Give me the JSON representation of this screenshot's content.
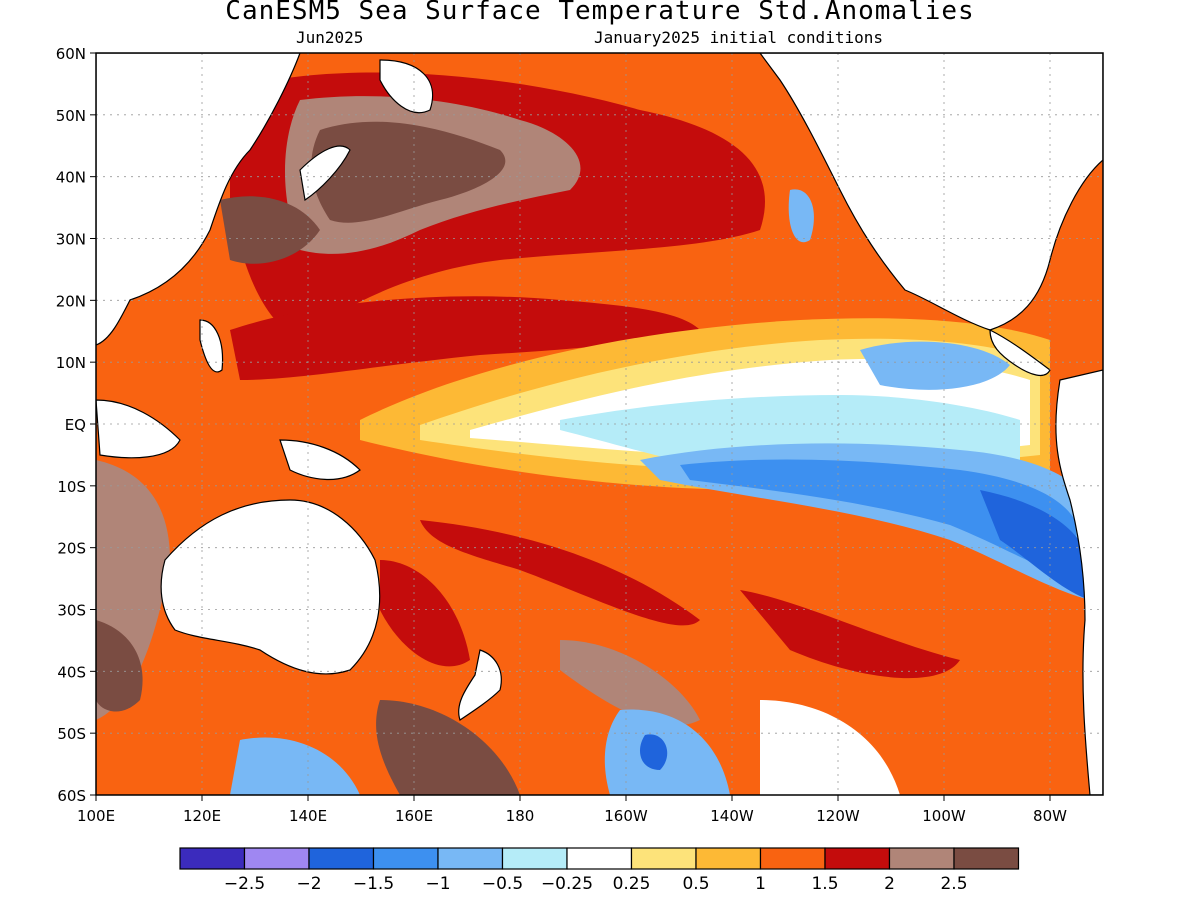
{
  "title": "CanESM5 Sea Surface Temperature Std.Anomalies",
  "subtitle_left": "Jun2025",
  "subtitle_right": "January2025 initial conditions",
  "lat_labels": [
    "60N",
    "50N",
    "40N",
    "30N",
    "20N",
    "10N",
    "EQ",
    "10S",
    "20S",
    "30S",
    "40S",
    "50S",
    "60S"
  ],
  "lon_labels": [
    "100E",
    "120E",
    "140E",
    "160E",
    "180",
    "160W",
    "140W",
    "120W",
    "100W",
    "80W"
  ],
  "map_extent": {
    "lon_min": 100,
    "lon_max": 290,
    "lat_min": -60,
    "lat_max": 60
  },
  "colorbar": {
    "colors": [
      "#3b2bbd",
      "#9f87f2",
      "#1f64dc",
      "#3d90f0",
      "#78b8f5",
      "#b5ecf8",
      "#ffffff",
      "#fde37a",
      "#fdb935",
      "#f96311",
      "#c40c0c",
      "#b08578",
      "#7a4c42"
    ],
    "labels": [
      "−2.5",
      "−2",
      "−1.5",
      "−1",
      "−0.5",
      "−0.25",
      "0.25",
      "0.5",
      "1",
      "1.5",
      "2",
      "2.5"
    ]
  }
}
